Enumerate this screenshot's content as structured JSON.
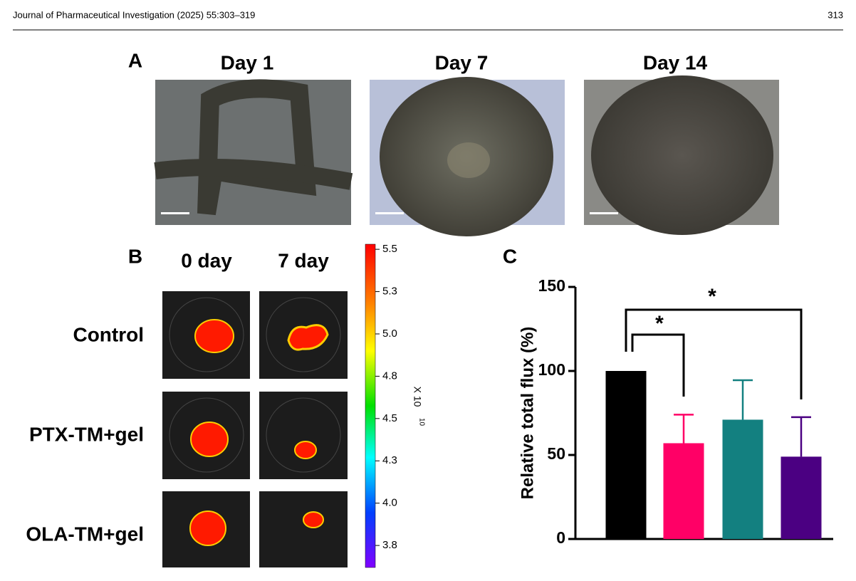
{
  "header": {
    "journal": "Journal of Pharmaceutical Investigation (2025) 55:303–319",
    "page": "313"
  },
  "panel_a": {
    "label": "A",
    "columns": [
      "Day 1",
      "Day 7",
      "Day 14"
    ]
  },
  "panel_b": {
    "label": "B",
    "columns": [
      "0 day",
      "7 day"
    ],
    "rows": [
      "Control",
      "PTX-TM+gel",
      "OLA-TM+gel"
    ],
    "colorbar": {
      "lim": [
        3.62,
        5.53
      ],
      "unit": "X 10",
      "exponent": "10",
      "ticks": [
        {
          "value": 5.5,
          "label": "5.5"
        },
        {
          "value": 5.25,
          "label": "5.3"
        },
        {
          "value": 5.0,
          "label": "5.0"
        },
        {
          "value": 4.75,
          "label": "4.8"
        },
        {
          "value": 4.5,
          "label": "4.5"
        },
        {
          "value": 4.25,
          "label": "4.3"
        },
        {
          "value": 4.0,
          "label": "4.0"
        },
        {
          "value": 3.75,
          "label": "3.8"
        }
      ]
    }
  },
  "panel_c": {
    "label": "C"
  },
  "chart_data": {
    "type": "bar",
    "ylabel": "Relative total flux (%)",
    "categories": [
      null,
      null,
      null,
      null
    ],
    "values": [
      100,
      57,
      71,
      49
    ],
    "errors": [
      0,
      17,
      23.5,
      23.5
    ],
    "colors": [
      "#000000",
      "#ff0066",
      "#138080",
      "#4b0082"
    ],
    "ylim": [
      0,
      150
    ],
    "yticks": [
      0,
      50,
      100,
      150
    ],
    "annotations": [
      "*",
      "*"
    ]
  }
}
